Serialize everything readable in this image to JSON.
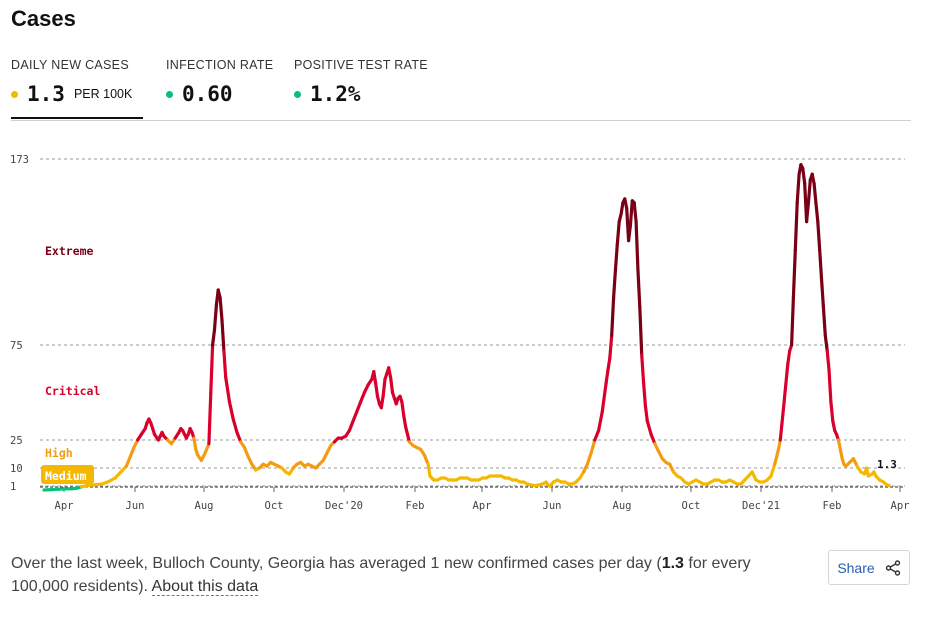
{
  "header": {
    "title": "Cases"
  },
  "tabs": [
    {
      "label": "DAILY NEW CASES",
      "value": "1.3",
      "unit": "PER 100K",
      "dot_color": "#f5b800",
      "active": true
    },
    {
      "label": "INFECTION RATE",
      "value": "0.60",
      "unit": "",
      "dot_color": "#00c478",
      "active": false
    },
    {
      "label": "POSITIVE TEST RATE",
      "value": "1.2%",
      "unit": "",
      "dot_color": "#00c478",
      "active": false
    }
  ],
  "chart_data": {
    "type": "line",
    "title": "",
    "xlabel": "",
    "ylabel": "",
    "y_ticks": [
      1,
      10,
      25,
      75,
      173
    ],
    "ylim": [
      0,
      173
    ],
    "grid": "horizontal dashed at thresholds",
    "x_tick_labels": [
      "Apr",
      "Jun",
      "Aug",
      "Oct",
      "Dec'20",
      "Feb",
      "Apr",
      "Jun",
      "Aug",
      "Oct",
      "Dec'21",
      "Feb",
      "Apr"
    ],
    "zones": [
      {
        "name": "Extreme",
        "min": 75,
        "color": "#7a0016"
      },
      {
        "name": "Critical",
        "min": 25,
        "color": "#d9002c"
      },
      {
        "name": "High",
        "min": 10,
        "color": "#f39c12"
      },
      {
        "name": "Medium",
        "min": 1,
        "color": "#f5b800"
      },
      {
        "name": "Low",
        "min": 0,
        "color": "#00c478"
      }
    ],
    "last_value_label": "1.3",
    "series": [
      {
        "values": [
          [
            0,
            0
          ],
          [
            4,
            0.1
          ],
          [
            8,
            0.2
          ],
          [
            12,
            0.3
          ],
          [
            15,
            0.3
          ],
          [
            18,
            0.5
          ],
          [
            20,
            0.8
          ],
          [
            23,
            1.2
          ],
          [
            27,
            1.6
          ],
          [
            31,
            2
          ],
          [
            34,
            3
          ],
          [
            38,
            5
          ],
          [
            41,
            8
          ],
          [
            44,
            11
          ],
          [
            46,
            16
          ],
          [
            48,
            21
          ],
          [
            50,
            25
          ],
          [
            52,
            28
          ],
          [
            54,
            31
          ],
          [
            55,
            34
          ],
          [
            56,
            36
          ],
          [
            57,
            34
          ],
          [
            58,
            31
          ],
          [
            59,
            28
          ],
          [
            61,
            25
          ],
          [
            62,
            27
          ],
          [
            63,
            29
          ],
          [
            64,
            27
          ],
          [
            66,
            25
          ],
          [
            68,
            23
          ],
          [
            70,
            26
          ],
          [
            72,
            29
          ],
          [
            73,
            31
          ],
          [
            74,
            30
          ],
          [
            75,
            28
          ],
          [
            76,
            26
          ],
          [
            77,
            28
          ],
          [
            78,
            31
          ],
          [
            79,
            29
          ],
          [
            80,
            26
          ],
          [
            81,
            20
          ],
          [
            82,
            17
          ],
          [
            84,
            14
          ],
          [
            86,
            18
          ],
          [
            88,
            23
          ],
          [
            89,
            50
          ],
          [
            90,
            75
          ],
          [
            91,
            83
          ],
          [
            92,
            96
          ],
          [
            93,
            104
          ],
          [
            94,
            100
          ],
          [
            95,
            88
          ],
          [
            96,
            72
          ],
          [
            97,
            58
          ],
          [
            99,
            45
          ],
          [
            101,
            36
          ],
          [
            103,
            29
          ],
          [
            105,
            24
          ],
          [
            107,
            21
          ],
          [
            109,
            16
          ],
          [
            111,
            12
          ],
          [
            113,
            9
          ],
          [
            115,
            10
          ],
          [
            117,
            12
          ],
          [
            119,
            11
          ],
          [
            121,
            13
          ],
          [
            123,
            12
          ],
          [
            125,
            11
          ],
          [
            127,
            10
          ],
          [
            129,
            8
          ],
          [
            131,
            7
          ],
          [
            133,
            10
          ],
          [
            135,
            12
          ],
          [
            137,
            13
          ],
          [
            139,
            11
          ],
          [
            141,
            12
          ],
          [
            143,
            11
          ],
          [
            145,
            10
          ],
          [
            147,
            12
          ],
          [
            149,
            14
          ],
          [
            151,
            18
          ],
          [
            153,
            22
          ],
          [
            155,
            24
          ],
          [
            157,
            26
          ],
          [
            159,
            26
          ],
          [
            161,
            27
          ],
          [
            163,
            30
          ],
          [
            165,
            35
          ],
          [
            167,
            40
          ],
          [
            169,
            45
          ],
          [
            171,
            50
          ],
          [
            173,
            54
          ],
          [
            175,
            57
          ],
          [
            176,
            61
          ],
          [
            177,
            55
          ],
          [
            178,
            48
          ],
          [
            179,
            44
          ],
          [
            180,
            42
          ],
          [
            181,
            48
          ],
          [
            182,
            57
          ],
          [
            183,
            60
          ],
          [
            184,
            63
          ],
          [
            185,
            58
          ],
          [
            186,
            50
          ],
          [
            187,
            47
          ],
          [
            188,
            44
          ],
          [
            189,
            47
          ],
          [
            190,
            48
          ],
          [
            191,
            45
          ],
          [
            192,
            38
          ],
          [
            193,
            32
          ],
          [
            194,
            28
          ],
          [
            195,
            24
          ],
          [
            197,
            22
          ],
          [
            199,
            21
          ],
          [
            201,
            20
          ],
          [
            203,
            17
          ],
          [
            205,
            12
          ],
          [
            206,
            6
          ],
          [
            208,
            4
          ],
          [
            210,
            4
          ],
          [
            212,
            5
          ],
          [
            214,
            5
          ],
          [
            216,
            4
          ],
          [
            218,
            4
          ],
          [
            220,
            4
          ],
          [
            222,
            5
          ],
          [
            224,
            5
          ],
          [
            226,
            5
          ],
          [
            228,
            4
          ],
          [
            230,
            4
          ],
          [
            232,
            4
          ],
          [
            234,
            5
          ],
          [
            236,
            5
          ],
          [
            238,
            6
          ],
          [
            240,
            6
          ],
          [
            242,
            6
          ],
          [
            244,
            6
          ],
          [
            246,
            5
          ],
          [
            248,
            5
          ],
          [
            250,
            4
          ],
          [
            252,
            4
          ],
          [
            254,
            3
          ],
          [
            256,
            3
          ],
          [
            258,
            2
          ],
          [
            260,
            1.5
          ],
          [
            262,
            1.2
          ],
          [
            264,
            1.5
          ],
          [
            266,
            2
          ],
          [
            268,
            3
          ],
          [
            269,
            1.5
          ],
          [
            270,
            1
          ],
          [
            271,
            2
          ],
          [
            272,
            3
          ],
          [
            274,
            4
          ],
          [
            276,
            3
          ],
          [
            278,
            3
          ],
          [
            280,
            2
          ],
          [
            282,
            2
          ],
          [
            284,
            3
          ],
          [
            286,
            5
          ],
          [
            288,
            8
          ],
          [
            290,
            12
          ],
          [
            292,
            18
          ],
          [
            294,
            25
          ],
          [
            296,
            30
          ],
          [
            298,
            40
          ],
          [
            300,
            55
          ],
          [
            301,
            62
          ],
          [
            302,
            68
          ],
          [
            303,
            80
          ],
          [
            304,
            100
          ],
          [
            305,
            115
          ],
          [
            306,
            128
          ],
          [
            307,
            140
          ],
          [
            308,
            144
          ],
          [
            309,
            150
          ],
          [
            310,
            152
          ],
          [
            311,
            147
          ],
          [
            312,
            130
          ],
          [
            313,
            138
          ],
          [
            314,
            151
          ],
          [
            315,
            150
          ],
          [
            316,
            140
          ],
          [
            317,
            115
          ],
          [
            318,
            95
          ],
          [
            319,
            70
          ],
          [
            320,
            55
          ],
          [
            321,
            43
          ],
          [
            322,
            35
          ],
          [
            324,
            28
          ],
          [
            326,
            23
          ],
          [
            328,
            19
          ],
          [
            330,
            15
          ],
          [
            332,
            13
          ],
          [
            334,
            12
          ],
          [
            336,
            8
          ],
          [
            338,
            6
          ],
          [
            340,
            5
          ],
          [
            342,
            3
          ],
          [
            344,
            2
          ],
          [
            346,
            3
          ],
          [
            348,
            4
          ],
          [
            350,
            3
          ],
          [
            352,
            2
          ],
          [
            354,
            2
          ],
          [
            356,
            3
          ],
          [
            358,
            4
          ],
          [
            360,
            4
          ],
          [
            362,
            3
          ],
          [
            364,
            3
          ],
          [
            366,
            4
          ],
          [
            368,
            3
          ],
          [
            370,
            2
          ],
          [
            372,
            2
          ],
          [
            374,
            4
          ],
          [
            376,
            6
          ],
          [
            378,
            8
          ],
          [
            380,
            4
          ],
          [
            382,
            3
          ],
          [
            384,
            3
          ],
          [
            386,
            4
          ],
          [
            388,
            6
          ],
          [
            390,
            12
          ],
          [
            392,
            20
          ],
          [
            393,
            25
          ],
          [
            395,
            45
          ],
          [
            397,
            65
          ],
          [
            398,
            72
          ],
          [
            399,
            75
          ],
          [
            400,
            100
          ],
          [
            401,
            125
          ],
          [
            402,
            150
          ],
          [
            403,
            165
          ],
          [
            404,
            170
          ],
          [
            405,
            168
          ],
          [
            406,
            160
          ],
          [
            407,
            140
          ],
          [
            408,
            150
          ],
          [
            409,
            162
          ],
          [
            410,
            165
          ],
          [
            411,
            160
          ],
          [
            412,
            150
          ],
          [
            413,
            140
          ],
          [
            414,
            125
          ],
          [
            415,
            110
          ],
          [
            416,
            95
          ],
          [
            417,
            80
          ],
          [
            418,
            72
          ],
          [
            419,
            62
          ],
          [
            420,
            45
          ],
          [
            421,
            35
          ],
          [
            422,
            30
          ],
          [
            423,
            28
          ],
          [
            424,
            25
          ],
          [
            425,
            20
          ],
          [
            426,
            15
          ],
          [
            427,
            12
          ],
          [
            428,
            11
          ],
          [
            430,
            13
          ],
          [
            432,
            15
          ],
          [
            433,
            13
          ],
          [
            434,
            11
          ],
          [
            436,
            8
          ],
          [
            438,
            7
          ],
          [
            439,
            10
          ],
          [
            440,
            6
          ],
          [
            442,
            7
          ],
          [
            443,
            8
          ],
          [
            444,
            6
          ],
          [
            446,
            4
          ],
          [
            448,
            3
          ],
          [
            450,
            1.5
          ],
          [
            451,
            1.3
          ]
        ]
      }
    ]
  },
  "footer": {
    "text_before": "Over the last week, Bulloch County, Georgia has averaged 1 new confirmed cases per day (",
    "bold_value": "1.3",
    "text_after": " for every 100,000 residents). ",
    "about_link": "About this data"
  },
  "share": {
    "label": "Share",
    "icon": "share-icon"
  }
}
